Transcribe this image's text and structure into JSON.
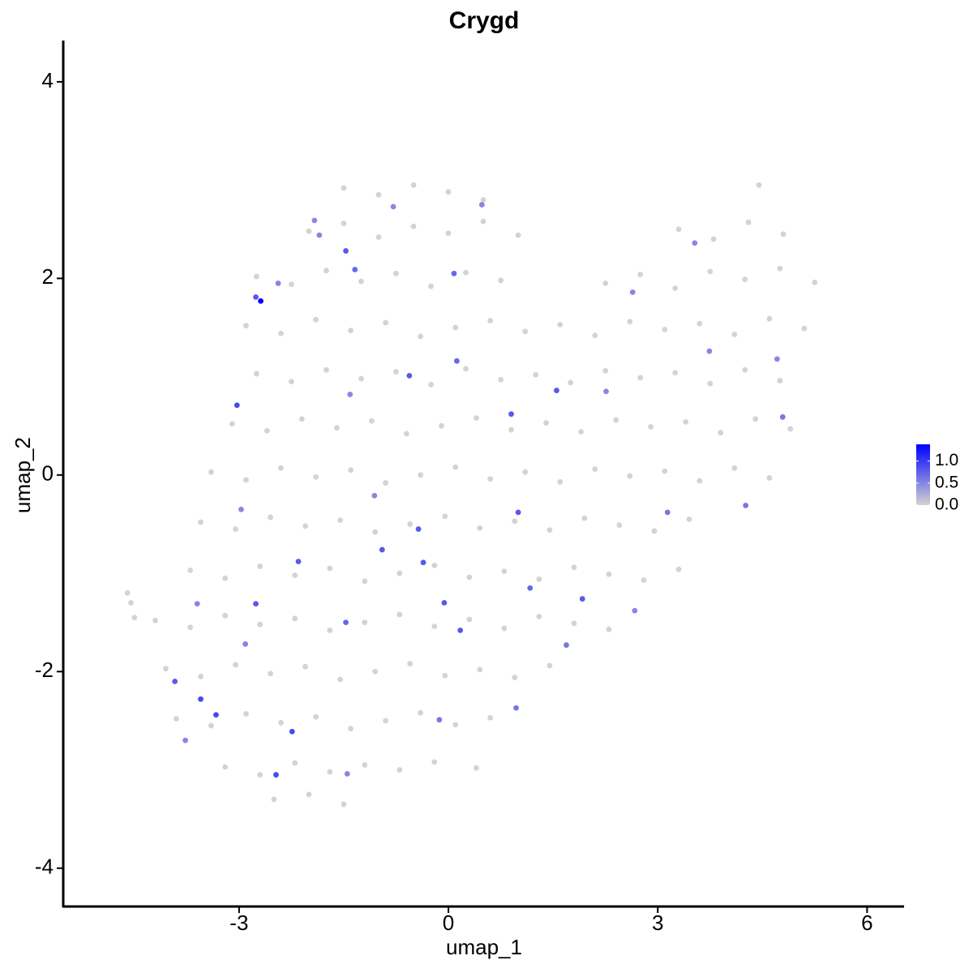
{
  "chart_data": {
    "type": "scatter",
    "title": "Crygd",
    "x_label": "umap_1",
    "y_label": "umap_2",
    "xlim": [
      -5.52,
      6.53
    ],
    "ylim": [
      -4.39,
      4.42
    ],
    "xticks": [
      -3,
      0,
      3,
      6
    ],
    "yticks": [
      -4,
      -2,
      0,
      2,
      4
    ],
    "color_scale": {
      "low": "#d3d3d3",
      "high": "#0000ff",
      "limits": [
        0,
        1.38
      ],
      "ticks": [
        {
          "value": 0,
          "label": "0.0"
        },
        {
          "value": 0.5,
          "label": "0.5"
        },
        {
          "value": 1,
          "label": "1.0"
        }
      ]
    },
    "x": [
      -1.5,
      -1.0,
      -0.5,
      0,
      0.5,
      4.45,
      -2.0,
      -1.5,
      -1.0,
      -0.5,
      0,
      0.5,
      1.0,
      3.3,
      3.8,
      4.3,
      4.8,
      -2.75,
      -2.25,
      -1.75,
      -1.25,
      -0.75,
      -0.25,
      0.25,
      0.75,
      2.25,
      2.75,
      3.25,
      3.75,
      4.25,
      4.75,
      5.25,
      -2.9,
      -2.4,
      -1.9,
      -1.4,
      -0.9,
      -0.4,
      0.1,
      0.6,
      1.1,
      1.6,
      2.1,
      2.6,
      3.1,
      3.6,
      4.1,
      4.6,
      5.1,
      -2.75,
      -2.25,
      -1.75,
      -1.25,
      -0.75,
      -0.25,
      0.25,
      0.75,
      1.25,
      1.75,
      2.25,
      2.75,
      3.25,
      3.75,
      4.25,
      4.75,
      -3.1,
      -2.6,
      -2.1,
      -1.6,
      -1.1,
      -0.6,
      -0.1,
      0.4,
      0.9,
      1.4,
      1.9,
      2.4,
      2.9,
      3.4,
      3.9,
      4.4,
      4.9,
      -3.4,
      -2.9,
      -2.4,
      -1.9,
      -1.4,
      -0.9,
      -0.4,
      0.1,
      0.6,
      1.1,
      1.6,
      2.1,
      2.6,
      3.1,
      3.6,
      4.1,
      4.6,
      -3.55,
      -3.05,
      -2.55,
      -2.05,
      -1.55,
      -1.05,
      -0.55,
      -0.05,
      0.45,
      0.95,
      1.45,
      1.95,
      2.45,
      2.95,
      3.45,
      -3.7,
      -3.2,
      -2.7,
      -2.2,
      -1.7,
      -1.2,
      -0.7,
      -0.2,
      0.3,
      0.8,
      1.3,
      1.8,
      2.3,
      2.8,
      3.3,
      -4.2,
      -3.7,
      -3.2,
      -2.7,
      -2.2,
      -1.7,
      -1.2,
      -0.7,
      -0.2,
      0.3,
      0.8,
      1.3,
      1.8,
      2.3,
      -4.05,
      -3.55,
      -3.05,
      -2.55,
      -2.05,
      -1.55,
      -1.05,
      -0.55,
      -0.05,
      0.45,
      0.95,
      1.45,
      -3.9,
      -3.4,
      -2.9,
      -2.4,
      -1.9,
      -1.4,
      -0.9,
      -0.4,
      0.1,
      0.6,
      -3.2,
      -2.7,
      -2.2,
      -1.7,
      -1.2,
      -0.7,
      -0.2,
      0.4,
      -2.5,
      -2.0,
      -1.5,
      -4.6,
      -4.55,
      -4.5,
      -2.69,
      -2.76,
      -3.03,
      -1.47,
      0.08,
      -0.56,
      1.0,
      -0.95,
      -0.36,
      -0.06,
      -2.76,
      -2.15,
      -3.55,
      -3.33,
      -2.24,
      -2.47,
      -3.92,
      1.92,
      0.17,
      1.17,
      1.55,
      0.9,
      0.12,
      -1.34,
      -0.43,
      -1.47,
      -0.13,
      0.97,
      3.14,
      4.26,
      4.79,
      4.71,
      3.74,
      3.53,
      2.64,
      2.26,
      -2.97,
      -3.6,
      -2.91,
      -1.41,
      -1.06,
      0.48,
      -0.79,
      -1.92,
      -2.44,
      -1.85,
      1.69,
      2.67,
      -1.45,
      -3.77
    ],
    "y": [
      2.92,
      2.85,
      2.95,
      2.88,
      2.8,
      2.95,
      2.48,
      2.56,
      2.42,
      2.53,
      2.46,
      2.58,
      2.44,
      2.5,
      2.4,
      2.57,
      2.45,
      2.02,
      1.94,
      2.08,
      1.97,
      2.05,
      1.92,
      2.06,
      1.98,
      1.95,
      2.04,
      1.9,
      2.07,
      1.99,
      2.1,
      1.96,
      1.52,
      1.44,
      1.58,
      1.47,
      1.55,
      1.41,
      1.5,
      1.57,
      1.46,
      1.53,
      1.42,
      1.56,
      1.48,
      1.54,
      1.43,
      1.59,
      1.49,
      1.03,
      0.95,
      1.07,
      0.98,
      1.05,
      0.92,
      1.08,
      0.97,
      1.02,
      0.94,
      1.06,
      0.99,
      1.04,
      0.93,
      1.07,
      0.96,
      0.52,
      0.45,
      0.57,
      0.48,
      0.55,
      0.42,
      0.5,
      0.58,
      0.46,
      0.53,
      0.44,
      0.56,
      0.49,
      0.54,
      0.43,
      0.57,
      0.47,
      0.03,
      -0.05,
      0.07,
      -0.02,
      0.05,
      -0.08,
      0.0,
      0.08,
      -0.04,
      0.03,
      -0.07,
      0.06,
      -0.01,
      0.04,
      -0.06,
      0.07,
      -0.03,
      -0.48,
      -0.55,
      -0.43,
      -0.52,
      -0.46,
      -0.58,
      -0.5,
      -0.42,
      -0.54,
      -0.47,
      -0.56,
      -0.44,
      -0.51,
      -0.57,
      -0.45,
      -0.97,
      -1.05,
      -0.93,
      -1.02,
      -0.95,
      -1.08,
      -1.0,
      -0.92,
      -1.04,
      -0.98,
      -1.06,
      -0.94,
      -1.01,
      -1.07,
      -0.96,
      -1.48,
      -1.55,
      -1.43,
      -1.52,
      -1.46,
      -1.58,
      -1.5,
      -1.42,
      -1.54,
      -1.47,
      -1.56,
      -1.44,
      -1.51,
      -1.57,
      -1.97,
      -2.05,
      -1.93,
      -2.02,
      -1.95,
      -2.08,
      -2.0,
      -1.92,
      -2.04,
      -1.98,
      -2.06,
      -1.94,
      -2.48,
      -2.55,
      -2.43,
      -2.52,
      -2.46,
      -2.58,
      -2.5,
      -2.42,
      -2.54,
      -2.47,
      -2.97,
      -3.05,
      -2.93,
      -3.02,
      -2.95,
      -3.0,
      -2.92,
      -2.98,
      -3.3,
      -3.25,
      -3.35,
      -1.2,
      -1.3,
      -1.45,
      1.77,
      1.81,
      0.71,
      2.28,
      2.05,
      1.01,
      -0.38,
      -0.76,
      -0.89,
      -1.3,
      -1.31,
      -0.88,
      -2.28,
      -2.44,
      -2.61,
      -3.05,
      -2.1,
      -1.26,
      -1.58,
      -1.15,
      0.86,
      0.62,
      1.16,
      2.09,
      -0.55,
      -1.5,
      -2.49,
      -2.37,
      -0.38,
      -0.31,
      0.59,
      1.18,
      1.26,
      2.36,
      1.86,
      0.85,
      -0.35,
      -1.31,
      -1.72,
      0.82,
      -0.21,
      2.75,
      2.73,
      2.59,
      1.95,
      2.44,
      -1.73,
      -1.38,
      -3.04,
      -2.7
    ],
    "expression": [
      0,
      0,
      0,
      0,
      0,
      0,
      0,
      0,
      0,
      0,
      0,
      0,
      0,
      0,
      0,
      0,
      0,
      0,
      0,
      0,
      0,
      0,
      0,
      0,
      0,
      0,
      0,
      0,
      0,
      0,
      0,
      0,
      0,
      0,
      0,
      0,
      0,
      0,
      0,
      0,
      0,
      0,
      0,
      0,
      0,
      0,
      0,
      0,
      0,
      0,
      0,
      0,
      0,
      0,
      0,
      0,
      0,
      0,
      0,
      0,
      0,
      0,
      0,
      0,
      0,
      0,
      0,
      0,
      0,
      0,
      0,
      0,
      0,
      0,
      0,
      0,
      0,
      0,
      0,
      0,
      0,
      0,
      0,
      0,
      0,
      0,
      0,
      0,
      0,
      0,
      0,
      0,
      0,
      0,
      0,
      0,
      0,
      0,
      0,
      0,
      0,
      0,
      0,
      0,
      0,
      0,
      0,
      0,
      0,
      0,
      0,
      0,
      0,
      0,
      0,
      0,
      0,
      0,
      0,
      0,
      0,
      0,
      0,
      0,
      0,
      0,
      0,
      0,
      0,
      0,
      0,
      0,
      0,
      0,
      0,
      0,
      0,
      0,
      0,
      0,
      0,
      0,
      0,
      0,
      0,
      0,
      0,
      0,
      0,
      0,
      0,
      0,
      0,
      0,
      0,
      0,
      0,
      0,
      0,
      0,
      0,
      0,
      0,
      0,
      0,
      0,
      0,
      0,
      0,
      0,
      0,
      0,
      0,
      0,
      0,
      0,
      0,
      0,
      0,
      1.38,
      0.8,
      0.9,
      0.8,
      0.7,
      0.8,
      0.8,
      0.8,
      0.8,
      0.8,
      0.8,
      0.8,
      0.9,
      0.9,
      0.9,
      0.9,
      0.8,
      0.8,
      0.8,
      0.7,
      0.8,
      0.8,
      0.7,
      0.7,
      0.8,
      0.7,
      0.6,
      0.6,
      0.6,
      0.6,
      0.6,
      0.5,
      0.5,
      0.5,
      0.5,
      0.5,
      0.5,
      0.5,
      0.5,
      0.5,
      0.5,
      0.5,
      0.5,
      0.5,
      0.5,
      0.5,
      0.6,
      0.5,
      0.5,
      0.5
    ]
  }
}
